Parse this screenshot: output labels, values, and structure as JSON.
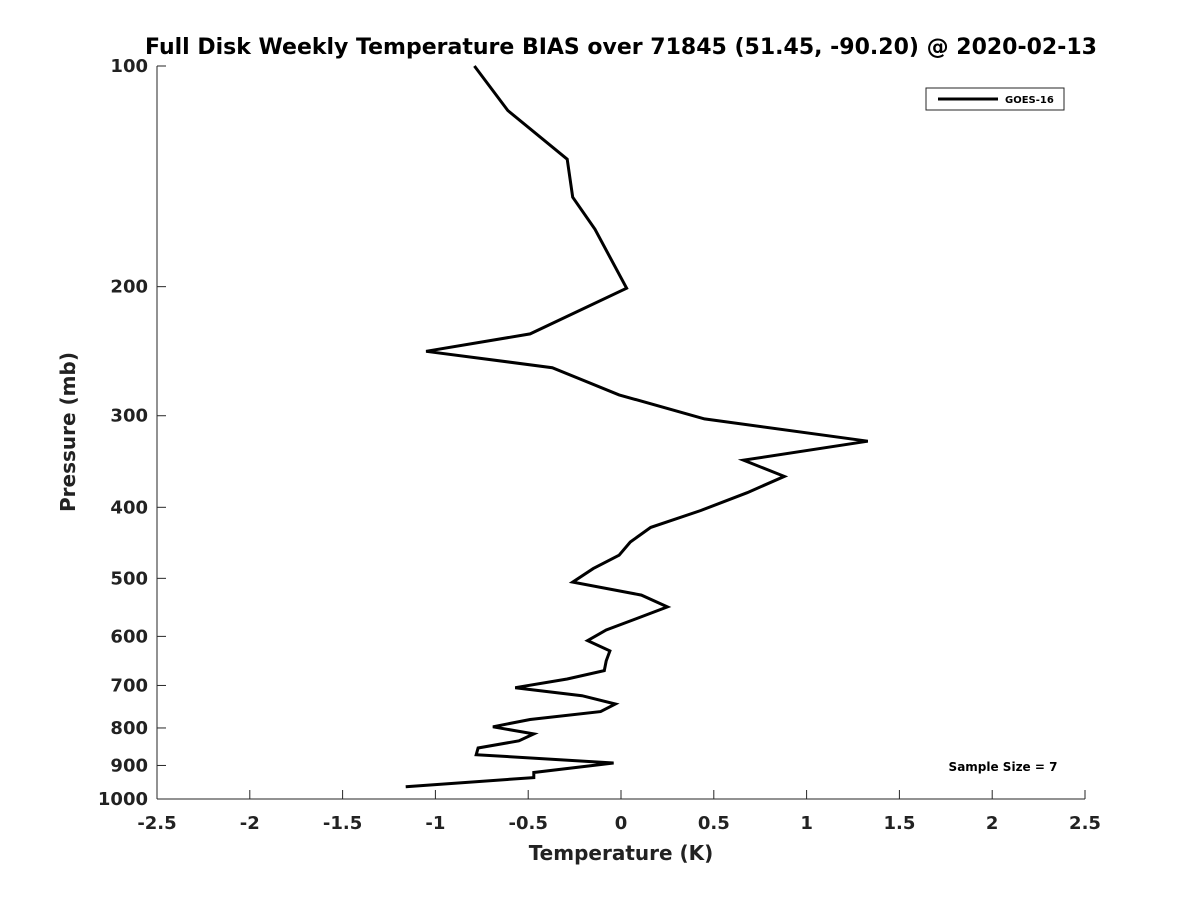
{
  "chart_data": {
    "type": "line",
    "title": "Full Disk Weekly Temperature BIAS over 71845 (51.45, -90.20) @ 2020-02-13",
    "xlabel": "Temperature (K)",
    "ylabel": "Pressure (mb)",
    "xlim": [
      -2.5,
      2.5
    ],
    "ylim": [
      1000,
      100
    ],
    "y_scale": "log",
    "y_reversed": true,
    "grid": false,
    "legend_position": "top-right",
    "x_ticks": [
      "-2.5",
      "-2",
      "-1.5",
      "-1",
      "-0.5",
      "0",
      "0.5",
      "1",
      "1.5",
      "2",
      "2.5"
    ],
    "y_ticks": [
      "100",
      "200",
      "300",
      "400",
      "500",
      "600",
      "700",
      "800",
      "900",
      "1000"
    ],
    "series": [
      {
        "name": "GOES-16",
        "color": "#000000",
        "x": [
          -0.79,
          -0.61,
          -0.29,
          -0.26,
          -0.14,
          0.03,
          -0.49,
          -1.05,
          -0.37,
          -0.01,
          0.45,
          1.33,
          0.66,
          0.88,
          0.68,
          0.43,
          0.16,
          0.05,
          -0.01,
          -0.15,
          -0.26,
          0.11,
          0.25,
          0.08,
          -0.08,
          -0.18,
          -0.06,
          -0.08,
          -0.09,
          -0.29,
          -0.57,
          -0.21,
          -0.03,
          -0.11,
          -0.49,
          -0.69,
          -0.47,
          -0.55,
          -0.77,
          -0.78,
          -0.04,
          -0.47,
          -0.47,
          -1.16
        ],
        "y": [
          100,
          115,
          134,
          151,
          167,
          201,
          232,
          245,
          258,
          281,
          303,
          325,
          345,
          363,
          382,
          404,
          426,
          446,
          465,
          485,
          506,
          527,
          547,
          568,
          588,
          608,
          628,
          648,
          668,
          686,
          705,
          723,
          742,
          760,
          779,
          797,
          815,
          833,
          852,
          870,
          893,
          920,
          935,
          962
        ]
      }
    ],
    "annotation": "Sample Size = 7"
  }
}
